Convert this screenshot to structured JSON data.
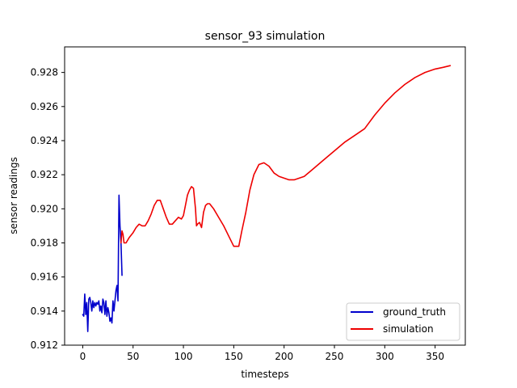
{
  "chart_data": {
    "type": "line",
    "title": "sensor_93 simulation",
    "xlabel": "timesteps",
    "ylabel": "sensor readings",
    "xlim": [
      -18,
      380
    ],
    "ylim": [
      0.912,
      0.9295
    ],
    "xticks": [
      0,
      50,
      100,
      150,
      200,
      250,
      300,
      350
    ],
    "yticks": [
      0.912,
      0.914,
      0.916,
      0.918,
      0.92,
      0.922,
      0.924,
      0.926,
      0.928
    ],
    "ytick_labels": [
      "0.912",
      "0.914",
      "0.916",
      "0.918",
      "0.920",
      "0.922",
      "0.924",
      "0.926",
      "0.928"
    ],
    "grid": false,
    "legend_position": "lower-right",
    "series": [
      {
        "name": "ground_truth",
        "color": "#0000cc",
        "x": [
          0,
          1,
          2,
          3,
          4,
          5,
          6,
          7,
          8,
          9,
          10,
          11,
          12,
          13,
          14,
          15,
          16,
          17,
          18,
          19,
          20,
          21,
          22,
          23,
          24,
          25,
          26,
          27,
          28,
          29,
          30,
          31,
          32,
          33,
          34,
          35,
          36,
          37,
          38,
          39
        ],
        "y": [
          0.9138,
          0.9137,
          0.915,
          0.9138,
          0.9145,
          0.9128,
          0.9147,
          0.9148,
          0.9145,
          0.914,
          0.9146,
          0.9142,
          0.9145,
          0.9143,
          0.9145,
          0.9144,
          0.9146,
          0.914,
          0.9143,
          0.9139,
          0.9147,
          0.9145,
          0.9138,
          0.9146,
          0.9137,
          0.9142,
          0.9139,
          0.9134,
          0.9136,
          0.9133,
          0.9146,
          0.914,
          0.9146,
          0.9152,
          0.9155,
          0.9146,
          0.9208,
          0.919,
          0.918,
          0.9161
        ]
      },
      {
        "name": "simulation",
        "color": "#ee0000",
        "x": [
          38,
          39,
          40,
          41,
          43,
          46,
          50,
          53,
          56,
          59,
          62,
          65,
          68,
          71,
          74,
          77,
          80,
          83,
          86,
          89,
          92,
          95,
          98,
          100,
          102,
          104,
          106,
          108,
          110,
          112,
          113,
          114,
          116,
          118,
          120,
          122,
          124,
          126,
          130,
          135,
          140,
          145,
          150,
          155,
          158,
          162,
          166,
          170,
          175,
          180,
          185,
          190,
          195,
          200,
          205,
          210,
          215,
          220,
          230,
          240,
          250,
          260,
          270,
          280,
          290,
          300,
          310,
          320,
          330,
          340,
          350,
          358,
          365
        ],
        "y": [
          0.918,
          0.9187,
          0.9185,
          0.918,
          0.918,
          0.9183,
          0.9186,
          0.9189,
          0.9191,
          0.919,
          0.919,
          0.9193,
          0.9197,
          0.9202,
          0.9205,
          0.9205,
          0.92,
          0.9195,
          0.9191,
          0.9191,
          0.9193,
          0.9195,
          0.9194,
          0.9196,
          0.9202,
          0.9208,
          0.9211,
          0.9213,
          0.9212,
          0.92,
          0.919,
          0.9191,
          0.9192,
          0.9189,
          0.9198,
          0.9202,
          0.9203,
          0.9203,
          0.92,
          0.9195,
          0.919,
          0.9184,
          0.9178,
          0.9178,
          0.9187,
          0.9198,
          0.9211,
          0.922,
          0.9226,
          0.9227,
          0.9225,
          0.9221,
          0.9219,
          0.9218,
          0.9217,
          0.9217,
          0.9218,
          0.9219,
          0.9224,
          0.9229,
          0.9234,
          0.9239,
          0.9243,
          0.9247,
          0.9255,
          0.9262,
          0.9268,
          0.9273,
          0.9277,
          0.928,
          0.9282,
          0.9283,
          0.9284
        ]
      }
    ]
  }
}
